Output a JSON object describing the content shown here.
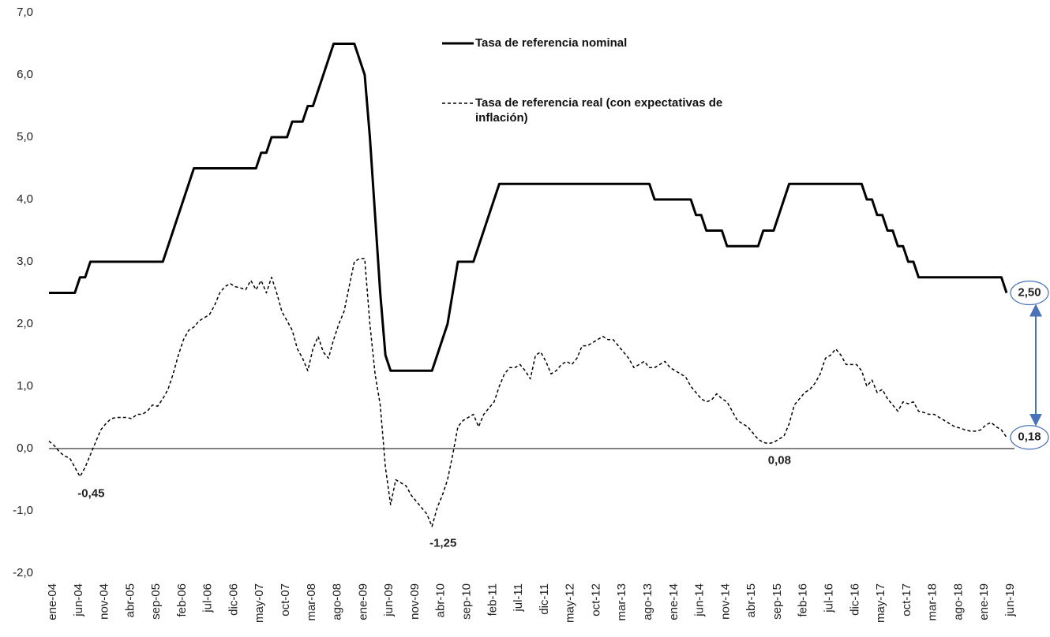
{
  "chart_data": {
    "type": "line",
    "categories": [
      "ene-04",
      null,
      null,
      null,
      null,
      "jun-04",
      null,
      null,
      null,
      null,
      "nov-04",
      null,
      null,
      null,
      null,
      "abr-05",
      null,
      null,
      null,
      null,
      "sep-05",
      null,
      null,
      null,
      null,
      "feb-06",
      null,
      null,
      null,
      null,
      "jul-06",
      null,
      null,
      null,
      null,
      "dic-06",
      null,
      null,
      null,
      null,
      "may-07",
      null,
      null,
      null,
      null,
      "oct-07",
      null,
      null,
      null,
      null,
      "mar-08",
      null,
      null,
      null,
      null,
      "ago-08",
      null,
      null,
      null,
      null,
      "ene-09",
      null,
      null,
      null,
      null,
      "jun-09",
      null,
      null,
      null,
      null,
      "nov-09",
      null,
      null,
      null,
      null,
      "abr-10",
      null,
      null,
      null,
      null,
      "sep-10",
      null,
      null,
      null,
      null,
      "feb-11",
      null,
      null,
      null,
      null,
      "jul-11",
      null,
      null,
      null,
      null,
      "dic-11",
      null,
      null,
      null,
      null,
      "may-12",
      null,
      null,
      null,
      null,
      "oct-12",
      null,
      null,
      null,
      null,
      "mar-13",
      null,
      null,
      null,
      null,
      "ago-13",
      null,
      null,
      null,
      null,
      "ene-14",
      null,
      null,
      null,
      null,
      "jun-14",
      null,
      null,
      null,
      null,
      "nov-14",
      null,
      null,
      null,
      null,
      "abr-15",
      null,
      null,
      null,
      null,
      "sep-15",
      null,
      null,
      null,
      null,
      "feb-16",
      null,
      null,
      null,
      null,
      "jul-16",
      null,
      null,
      null,
      null,
      "dic-16",
      null,
      null,
      null,
      null,
      "may-17",
      null,
      null,
      null,
      null,
      "oct-17",
      null,
      null,
      null,
      null,
      "mar-18",
      null,
      null,
      null,
      null,
      "ago-18",
      null,
      null,
      null,
      null,
      "ene-19",
      null,
      null,
      null,
      null,
      "jun-19"
    ],
    "series": [
      {
        "name": "Tasa de referencia nominal",
        "color": "#000000",
        "line_style": "solid",
        "values": [
          2.5,
          2.5,
          2.5,
          2.5,
          2.5,
          2.5,
          2.75,
          2.75,
          3,
          3,
          3,
          3,
          3,
          3,
          3,
          3,
          3,
          3,
          3,
          3,
          3,
          3,
          3,
          3.25,
          3.5,
          3.75,
          4,
          4.25,
          4.5,
          4.5,
          4.5,
          4.5,
          4.5,
          4.5,
          4.5,
          4.5,
          4.5,
          4.5,
          4.5,
          4.5,
          4.5,
          4.75,
          4.75,
          5,
          5,
          5,
          5,
          5.25,
          5.25,
          5.25,
          5.5,
          5.5,
          5.75,
          6,
          6.25,
          6.5,
          6.5,
          6.5,
          6.5,
          6.5,
          6.25,
          6,
          5,
          3.75,
          2.5,
          1.5,
          1.25,
          1.25,
          1.25,
          1.25,
          1.25,
          1.25,
          1.25,
          1.25,
          1.25,
          1.5,
          1.75,
          2,
          2.5,
          3,
          3,
          3,
          3,
          3.25,
          3.5,
          3.75,
          4,
          4.25,
          4.25,
          4.25,
          4.25,
          4.25,
          4.25,
          4.25,
          4.25,
          4.25,
          4.25,
          4.25,
          4.25,
          4.25,
          4.25,
          4.25,
          4.25,
          4.25,
          4.25,
          4.25,
          4.25,
          4.25,
          4.25,
          4.25,
          4.25,
          4.25,
          4.25,
          4.25,
          4.25,
          4.25,
          4.25,
          4,
          4,
          4,
          4,
          4,
          4,
          4,
          4,
          3.75,
          3.75,
          3.5,
          3.5,
          3.5,
          3.5,
          3.25,
          3.25,
          3.25,
          3.25,
          3.25,
          3.25,
          3.25,
          3.5,
          3.5,
          3.5,
          3.75,
          4,
          4.25,
          4.25,
          4.25,
          4.25,
          4.25,
          4.25,
          4.25,
          4.25,
          4.25,
          4.25,
          4.25,
          4.25,
          4.25,
          4.25,
          4.25,
          4,
          4,
          3.75,
          3.75,
          3.5,
          3.5,
          3.25,
          3.25,
          3,
          3,
          2.75,
          2.75,
          2.75,
          2.75,
          2.75,
          2.75,
          2.75,
          2.75,
          2.75,
          2.75,
          2.75,
          2.75,
          2.75,
          2.75,
          2.75,
          2.75,
          2.75,
          2.5
        ],
        "value_labels": [
          null,
          null,
          null,
          null,
          null,
          null,
          null,
          null,
          null,
          null,
          null,
          null,
          null,
          null,
          null,
          null,
          null,
          null,
          null,
          null,
          null,
          null,
          null,
          null,
          null,
          null,
          null,
          null,
          null,
          null,
          null,
          null,
          null,
          null,
          null,
          null,
          null,
          null,
          null,
          null,
          null,
          null,
          null,
          null,
          null,
          null,
          null,
          null,
          null,
          null,
          null,
          null,
          null,
          null,
          null,
          null,
          null,
          null,
          null,
          null,
          null,
          null,
          null,
          null,
          null,
          null,
          null,
          null,
          null,
          null,
          null,
          null,
          null,
          null,
          null,
          null,
          null,
          null,
          null,
          null,
          null,
          null,
          null,
          null,
          null,
          null,
          null,
          null,
          null,
          null,
          null,
          null,
          null,
          null,
          null,
          null,
          null,
          null,
          null,
          null,
          null,
          null,
          null,
          null,
          null,
          null,
          null,
          null,
          null,
          null,
          null,
          null,
          null,
          null,
          null,
          null,
          null,
          null,
          null,
          null,
          null,
          null,
          null,
          null,
          null,
          null,
          null,
          null,
          null,
          null,
          null,
          null,
          null,
          null,
          null,
          null,
          null,
          null,
          null,
          null,
          null,
          null,
          null,
          null,
          null,
          null,
          null,
          null,
          null,
          null,
          null,
          null,
          null,
          null,
          null,
          null,
          null,
          null,
          null,
          null,
          null,
          null,
          null,
          null,
          null,
          null,
          null,
          null,
          null,
          null,
          null,
          null,
          null,
          null,
          null,
          null,
          null,
          null,
          null,
          null,
          null,
          null,
          null,
          null,
          null,
          "2,50"
        ]
      },
      {
        "name": "Tasa de referencia real (con expectativas de inflación)",
        "color": "#000000",
        "line_style": "dashed",
        "values": [
          0.12,
          0.05,
          -0.05,
          -0.12,
          -0.15,
          -0.3,
          -0.45,
          -0.3,
          -0.1,
          0.1,
          0.3,
          0.4,
          0.48,
          0.5,
          0.5,
          0.5,
          0.48,
          0.55,
          0.55,
          0.6,
          0.7,
          0.68,
          0.8,
          0.95,
          1.2,
          1.5,
          1.75,
          1.9,
          1.95,
          2.05,
          2.1,
          2.15,
          2.3,
          2.5,
          2.6,
          2.65,
          2.6,
          2.58,
          2.55,
          2.7,
          2.55,
          2.7,
          2.5,
          2.75,
          2.5,
          2.2,
          2.05,
          1.9,
          1.6,
          1.45,
          1.25,
          1.6,
          1.8,
          1.55,
          1.45,
          1.75,
          2.0,
          2.2,
          2.6,
          3.0,
          3.05,
          3.05,
          2.0,
          1.2,
          0.7,
          -0.3,
          -0.9,
          -0.5,
          -0.55,
          -0.6,
          -0.75,
          -0.85,
          -0.95,
          -1.05,
          -1.25,
          -0.95,
          -0.75,
          -0.5,
          -0.1,
          0.35,
          0.45,
          0.5,
          0.55,
          0.35,
          0.55,
          0.65,
          0.75,
          1.0,
          1.2,
          1.3,
          1.3,
          1.35,
          1.25,
          1.12,
          1.5,
          1.55,
          1.4,
          1.2,
          1.25,
          1.35,
          1.4,
          1.35,
          1.45,
          1.65,
          1.65,
          1.7,
          1.75,
          1.8,
          1.75,
          1.75,
          1.65,
          1.55,
          1.45,
          1.3,
          1.35,
          1.4,
          1.3,
          1.3,
          1.35,
          1.4,
          1.3,
          1.25,
          1.2,
          1.15,
          1.0,
          0.9,
          0.8,
          0.75,
          0.78,
          0.88,
          0.8,
          0.75,
          0.6,
          0.45,
          0.4,
          0.35,
          0.25,
          0.15,
          0.1,
          0.08,
          0.1,
          0.15,
          0.2,
          0.4,
          0.7,
          0.8,
          0.9,
          0.95,
          1.05,
          1.2,
          1.45,
          1.5,
          1.6,
          1.5,
          1.35,
          1.35,
          1.35,
          1.25,
          1.0,
          1.1,
          0.9,
          0.95,
          0.8,
          0.7,
          0.6,
          0.75,
          0.72,
          0.75,
          0.6,
          0.58,
          0.55,
          0.55,
          0.5,
          0.45,
          0.4,
          0.35,
          0.33,
          0.3,
          0.28,
          0.28,
          0.3,
          0.38,
          0.42,
          0.35,
          0.3,
          0.18
        ],
        "value_labels": [
          null,
          null,
          null,
          null,
          null,
          null,
          "-0,45",
          null,
          null,
          null,
          null,
          null,
          null,
          null,
          null,
          null,
          null,
          null,
          null,
          null,
          null,
          null,
          null,
          null,
          null,
          null,
          null,
          null,
          null,
          null,
          null,
          null,
          null,
          null,
          null,
          null,
          null,
          null,
          null,
          null,
          null,
          null,
          null,
          null,
          null,
          null,
          null,
          null,
          null,
          null,
          null,
          null,
          null,
          null,
          null,
          null,
          null,
          null,
          null,
          null,
          null,
          null,
          null,
          null,
          null,
          null,
          null,
          null,
          null,
          null,
          null,
          null,
          null,
          null,
          "-1,25",
          null,
          null,
          null,
          null,
          null,
          null,
          null,
          null,
          null,
          null,
          null,
          null,
          null,
          null,
          null,
          null,
          null,
          null,
          null,
          null,
          null,
          null,
          null,
          null,
          null,
          null,
          null,
          null,
          null,
          null,
          null,
          null,
          null,
          null,
          null,
          null,
          null,
          null,
          null,
          null,
          null,
          null,
          null,
          null,
          null,
          null,
          null,
          null,
          null,
          null,
          null,
          null,
          null,
          null,
          null,
          null,
          null,
          null,
          null,
          null,
          null,
          null,
          null,
          null,
          "0,08",
          null,
          null,
          null,
          null,
          null,
          null,
          null,
          null,
          null,
          null,
          null,
          null,
          null,
          null,
          null,
          null,
          null,
          null,
          null,
          null,
          null,
          null,
          null,
          null,
          null,
          null,
          null,
          null,
          null,
          null,
          null,
          null,
          null,
          null,
          null,
          null,
          null,
          null,
          null,
          null,
          null,
          null,
          null,
          null,
          null,
          "0,18"
        ]
      }
    ],
    "ylim": [
      -2,
      7
    ],
    "yticks": [
      {
        "value": -2,
        "label": "-2,0"
      },
      {
        "value": -1,
        "label": "-1,0"
      },
      {
        "value": 0,
        "label": "0,0"
      },
      {
        "value": 1,
        "label": "1,0"
      },
      {
        "value": 2,
        "label": "2,0"
      },
      {
        "value": 3,
        "label": "3,0"
      },
      {
        "value": 4,
        "label": "4,0"
      },
      {
        "value": 5,
        "label": "5,0"
      },
      {
        "value": 6,
        "label": "6,0"
      },
      {
        "value": 7,
        "label": "7,0"
      }
    ],
    "zero_line": true,
    "grid": false
  }
}
